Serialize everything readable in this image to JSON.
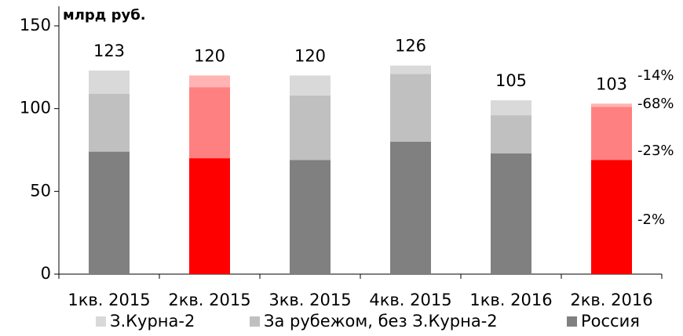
{
  "chart_data": {
    "type": "stacked_bar",
    "y_label": "млрд руб.",
    "categories": [
      "1кв. 2015",
      "2кв. 2015",
      "3кв. 2015",
      "4кв. 2015",
      "1кв. 2016",
      "2кв. 2016"
    ],
    "series": [
      {
        "name": "З.Курна-2",
        "color": "#d9d9d9",
        "highlight_color": "#ffb3b3",
        "values": [
          14,
          7,
          12,
          5,
          9,
          2
        ]
      },
      {
        "name": "За рубежом, без З.Курна-2",
        "color": "#c0c0c0",
        "highlight_color": "#ff8080",
        "values": [
          35,
          43,
          39,
          41,
          23,
          32
        ]
      },
      {
        "name": "Россия",
        "color": "#808080",
        "highlight_color": "#ff0000",
        "values": [
          74,
          70,
          69,
          80,
          73,
          69
        ]
      }
    ],
    "totals": [
      123,
      120,
      120,
      126,
      105,
      103
    ],
    "highlight": [
      1,
      5
    ],
    "annotations": [
      "-14%",
      "-68%",
      "-23%",
      "-2%"
    ],
    "ylim": [
      0,
      150
    ],
    "yticks": [
      0,
      50,
      100,
      150
    ],
    "legend": "bottom"
  }
}
